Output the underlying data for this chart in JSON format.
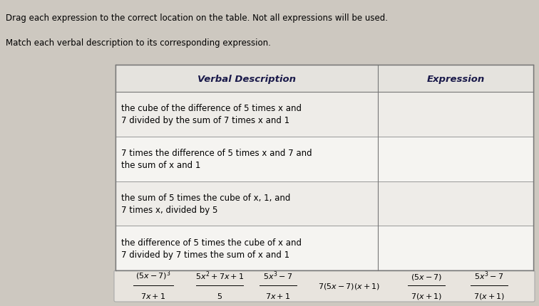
{
  "bg_color": "#cdc8c0",
  "instruction1": "Drag each expression to the correct location on the table. Not all expressions will be used.",
  "instruction2": "Match each verbal description to its corresponding expression.",
  "col1_header": "Verbal Description",
  "col2_header": "Expression",
  "rows": [
    "the cube of the difference of 5 times x and\n7 divided by the sum of 7 times x and 1",
    "7 times the difference of 5 times x and 7 and\nthe sum of x and 1",
    "the sum of 5 times the cube of x, 1, and\n7 times x, divided by 5",
    "the difference of 5 times the cube of x and\n7 divided by 7 times the sum of x and 1"
  ],
  "header_color": "#1a1a4a",
  "table_bg": "#f0eeeb",
  "font_size_instruction": 8.5,
  "font_size_header": 9.5,
  "font_size_cell": 8.5,
  "font_size_expr": 8.0
}
